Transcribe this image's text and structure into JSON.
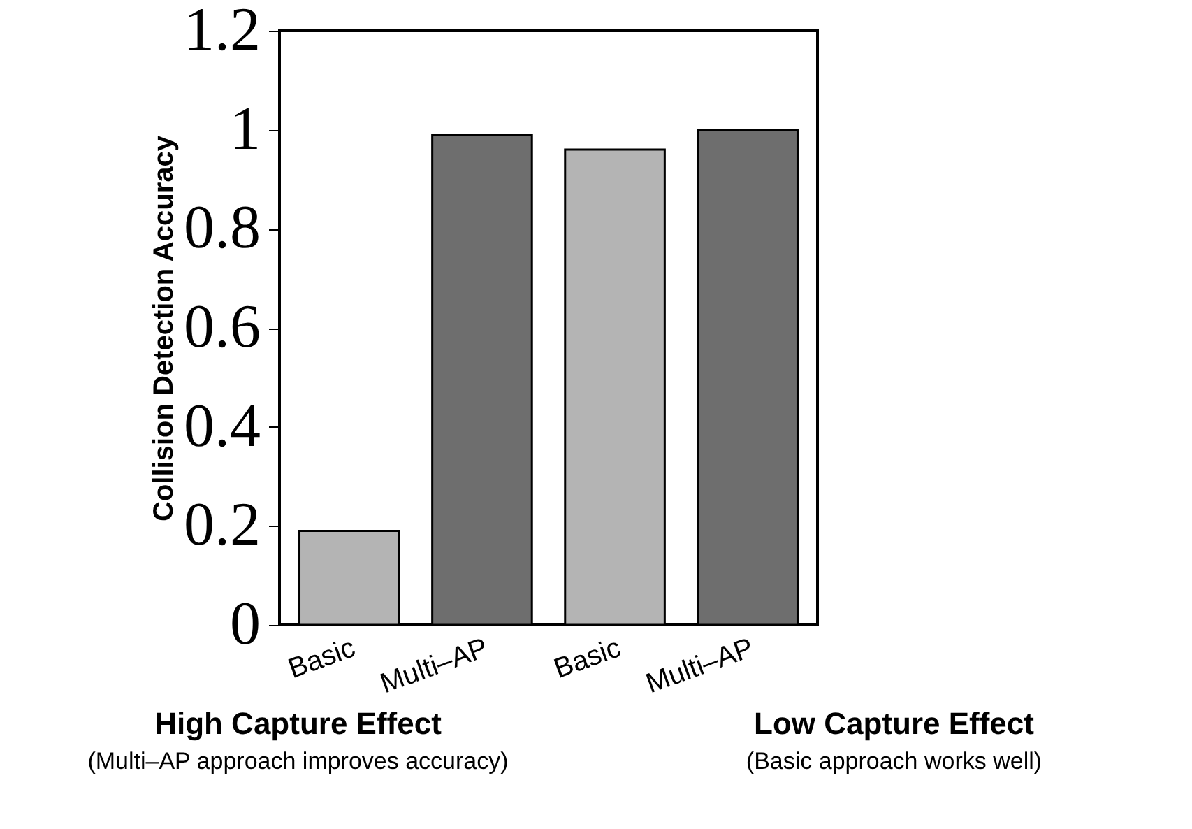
{
  "chart_data": {
    "type": "bar",
    "ylabel": "Collision Detection Accuracy",
    "categories": [
      "Basic",
      "Multi–AP",
      "Basic",
      "Multi–AP"
    ],
    "values": [
      0.19,
      0.99,
      0.96,
      1.0
    ],
    "colors": [
      "#b4b4b4",
      "#6e6e6e",
      "#b4b4b4",
      "#6e6e6e"
    ],
    "ylim": [
      0,
      1.2
    ],
    "yticks": [
      0,
      0.2,
      0.4,
      0.6,
      0.8,
      1,
      1.2
    ],
    "grid": false,
    "annotations": [
      "High Capture Effect",
      "(Multi–AP  approach improves accuracy)",
      "Low Capture Effect",
      "(Basic approach works well)"
    ]
  }
}
